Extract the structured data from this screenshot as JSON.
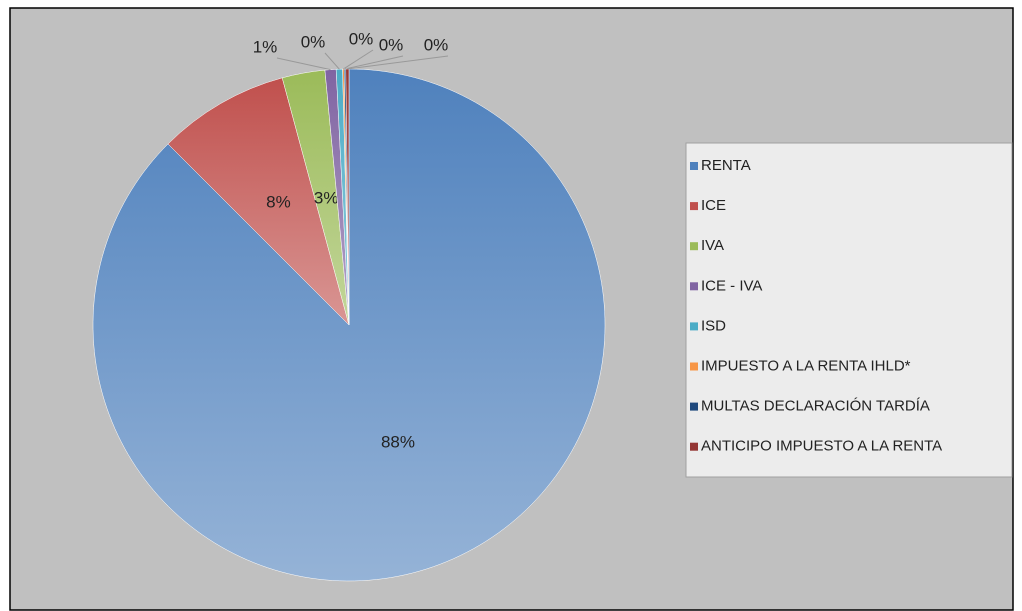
{
  "chart_data": {
    "type": "pie",
    "categories": [
      "RENTA",
      "ICE",
      "IVA",
      "ICE - IVA",
      "ISD",
      "IMPUESTO A LA RENTA IHLD*",
      "MULTAS DECLARACIÓN TARDÍA",
      "ANTICIPO IMPUESTO A LA RENTA"
    ],
    "values": [
      87.5,
      8.3,
      2.7,
      0.7,
      0.4,
      0.1,
      0.1,
      0.2
    ],
    "value_labels": [
      "88%",
      "8%",
      "3%",
      "1%",
      "0%",
      "0%",
      "0%",
      "0%"
    ],
    "colors": [
      "#4f81bd",
      "#c0504d",
      "#9bbb59",
      "#8064a2",
      "#4bacc6",
      "#f79646",
      "#1f497d",
      "#943634"
    ],
    "legend": "right"
  }
}
